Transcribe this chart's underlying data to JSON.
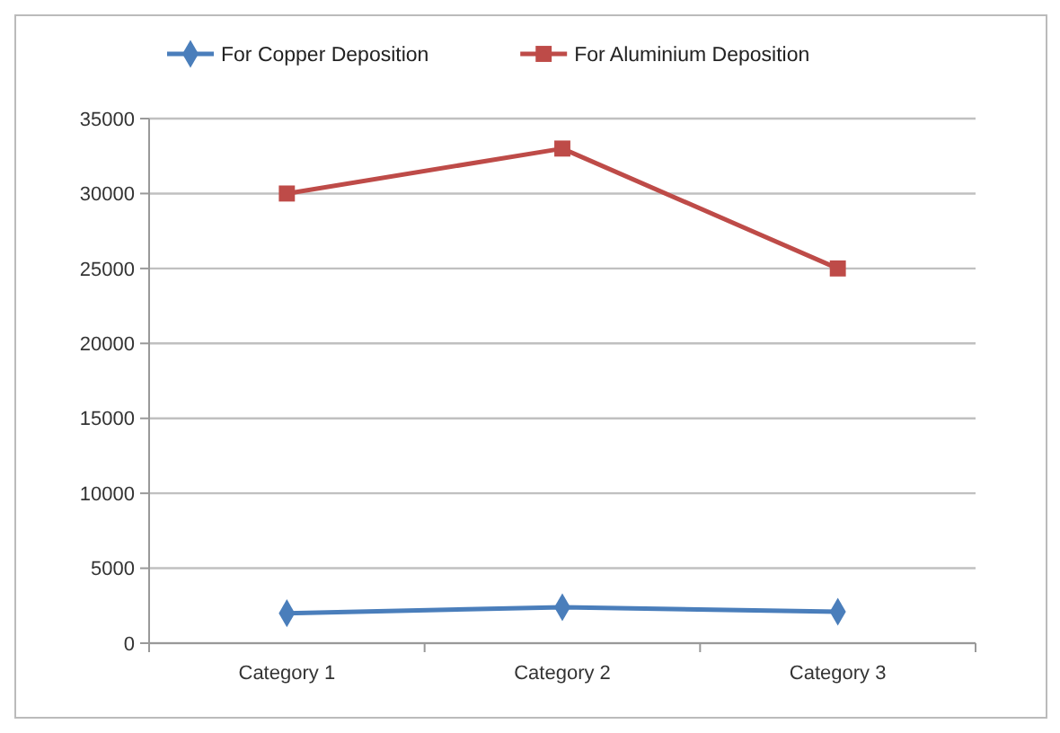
{
  "chart_data": {
    "type": "line",
    "categories": [
      "Category 1",
      "Category 2",
      "Category 3"
    ],
    "series": [
      {
        "name": "For Copper Deposition",
        "color": "#4a7ebb",
        "marker": "diamond",
        "values": [
          2000,
          2400,
          2100
        ]
      },
      {
        "name": "For Aluminium Deposition",
        "color": "#be4b48",
        "marker": "square",
        "values": [
          30000,
          33000,
          25000
        ]
      }
    ],
    "ylim": [
      0,
      35000
    ],
    "yticks": [
      0,
      5000,
      10000,
      15000,
      20000,
      25000,
      30000,
      35000
    ],
    "grid": "y",
    "legend": "top"
  }
}
